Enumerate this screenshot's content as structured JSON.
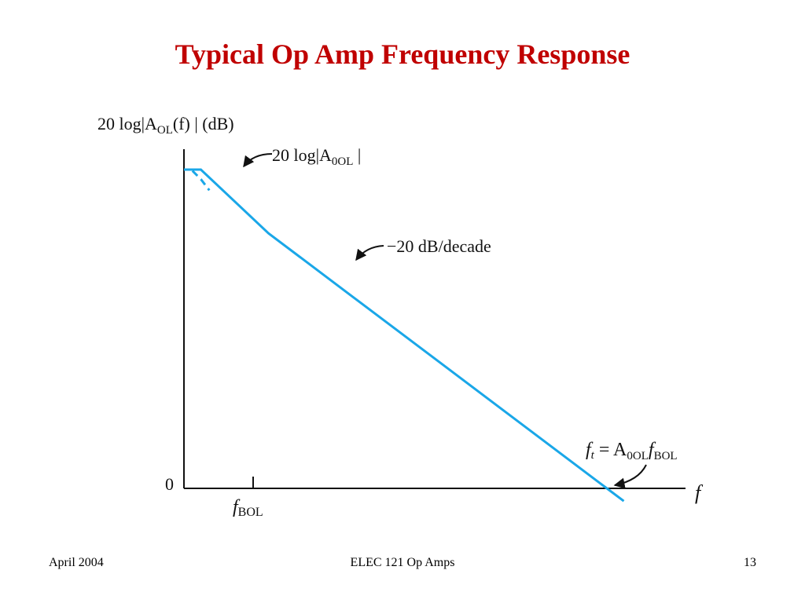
{
  "slide": {
    "title": "Typical Op Amp Frequency Response",
    "title_color": "#C00000",
    "footer_left": "April  2004",
    "footer_center": "ELEC 121  Op Amps",
    "footer_right": "13"
  },
  "chart_data": {
    "type": "line",
    "title": "Typical Op Amp Frequency Response",
    "axis_color": "#111111",
    "curve_color": "#1AA7E8",
    "xlabel": "f",
    "ylabel": {
      "base": "20 log|A",
      "sub": "OL",
      "rest": "(f) | (dB)"
    },
    "x_scale": "log",
    "y_origin_label": "0",
    "x_tick": {
      "base": "f",
      "sub": "BOL"
    },
    "series": [
      {
        "values": [
          [
            0,
            100
          ],
          [
            0.2,
            100
          ],
          [
            1.0,
            80
          ],
          [
            2.0,
            60
          ],
          [
            3.0,
            40
          ],
          [
            4.0,
            20
          ],
          [
            5.0,
            0
          ],
          [
            5.2,
            -4
          ]
        ]
      },
      {
        "dashed": true,
        "values": [
          [
            0.1,
            99.6
          ],
          [
            0.2,
            97
          ],
          [
            0.3,
            93.5
          ]
        ]
      }
    ],
    "annotations": {
      "dc_gain": {
        "base": "20 log|A",
        "sub": "0OL",
        "rest": " |"
      },
      "slope": "−20 dB/decade",
      "unity_gain": {
        "lhs": "f",
        "lhs_sub": "t",
        "eq": " = A",
        "sub1": "0OL",
        "mid": "f",
        "sub2": "BOL"
      }
    }
  }
}
